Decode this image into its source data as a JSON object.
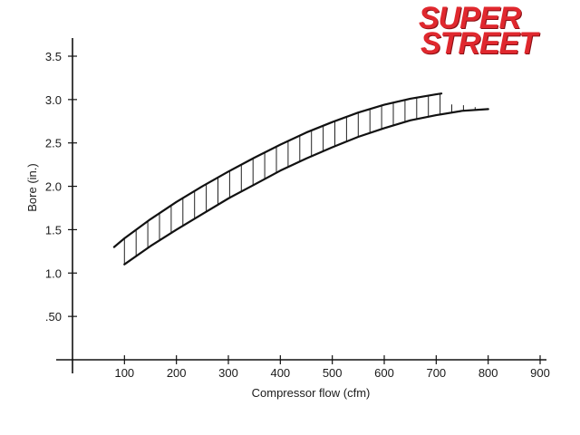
{
  "logo": {
    "line1": "SUPER",
    "line2": "STREET"
  },
  "chart_data": {
    "type": "area",
    "xlabel": "Compressor flow (cfm)",
    "ylabel": "Bore (in.)",
    "xlim": [
      0,
      900
    ],
    "ylim": [
      0,
      3.75
    ],
    "x_ticks": [
      {
        "value": 100,
        "label": "100"
      },
      {
        "value": 200,
        "label": "200"
      },
      {
        "value": 300,
        "label": "300"
      },
      {
        "value": 400,
        "label": "400"
      },
      {
        "value": 500,
        "label": "500"
      },
      {
        "value": 600,
        "label": "600"
      },
      {
        "value": 700,
        "label": "700"
      },
      {
        "value": 800,
        "label": "800"
      },
      {
        "value": 900,
        "label": "900"
      }
    ],
    "y_ticks": [
      {
        "value": 0.5,
        "label": ".50"
      },
      {
        "value": 1.0,
        "label": "1.0"
      },
      {
        "value": 1.5,
        "label": "1.5"
      },
      {
        "value": 2.0,
        "label": "2.0"
      },
      {
        "value": 2.5,
        "label": "2.5"
      },
      {
        "value": 3.0,
        "label": "3.0"
      },
      {
        "value": 3.5,
        "label": "3.5"
      }
    ],
    "grid": false,
    "legend": "none",
    "colors": {
      "line": "#111111",
      "hatch": "#222222"
    },
    "series": [
      {
        "role": "upper",
        "x": [
          80,
          100,
          150,
          200,
          250,
          300,
          350,
          400,
          450,
          500,
          550,
          600,
          650,
          700,
          710
        ],
        "y": [
          1.3,
          1.4,
          1.62,
          1.82,
          2.0,
          2.17,
          2.33,
          2.48,
          2.62,
          2.74,
          2.85,
          2.94,
          3.01,
          3.06,
          3.07
        ]
      },
      {
        "role": "lower",
        "x": [
          100,
          150,
          200,
          250,
          300,
          350,
          400,
          450,
          500,
          550,
          600,
          650,
          700,
          750,
          800
        ],
        "y": [
          1.1,
          1.31,
          1.5,
          1.68,
          1.86,
          2.02,
          2.18,
          2.32,
          2.45,
          2.57,
          2.67,
          2.76,
          2.82,
          2.87,
          2.89
        ]
      }
    ]
  }
}
